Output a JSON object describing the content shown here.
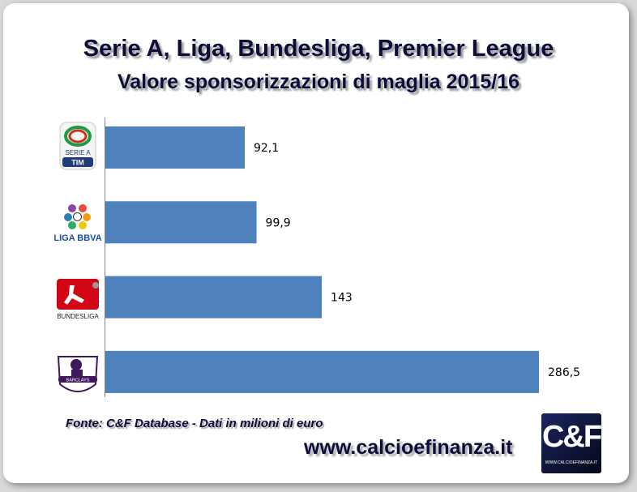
{
  "title": "Serie A, Liga, Bundesliga, Premier League",
  "subtitle": "Valore sponsorizzazioni di maglia 2015/16",
  "source": "Fonte: C&F Database - Dati in milioni di euro",
  "website": "www.calcioefinanza.it",
  "brand_logo": {
    "text": "C&F",
    "caption": "WWW.CALCIOEFINANZA.IT"
  },
  "logos": [
    {
      "name": "serie-a-tim-logo",
      "text": "SERIE A TIM"
    },
    {
      "name": "liga-bbva-logo",
      "text": "LIGA BBVA"
    },
    {
      "name": "bundesliga-logo",
      "text": "BUNDESLIGA"
    },
    {
      "name": "premier-league-logo",
      "text": "BARCLAYS PREMIER LEAGUE"
    }
  ],
  "chart_data": {
    "type": "bar",
    "orientation": "horizontal",
    "categories": [
      "Serie A",
      "Liga",
      "Bundesliga",
      "Premier League"
    ],
    "values": [
      92.1,
      99.9,
      143,
      286.5
    ],
    "data_labels": [
      "92,1",
      "99,9",
      "143",
      "286,5"
    ],
    "title": "Serie A, Liga, Bundesliga, Premier League",
    "subtitle": "Valore sponsorizzazioni di maglia 2015/16",
    "xlim": [
      0,
      300
    ],
    "grid": false,
    "bar_color": "#4f81bd"
  }
}
